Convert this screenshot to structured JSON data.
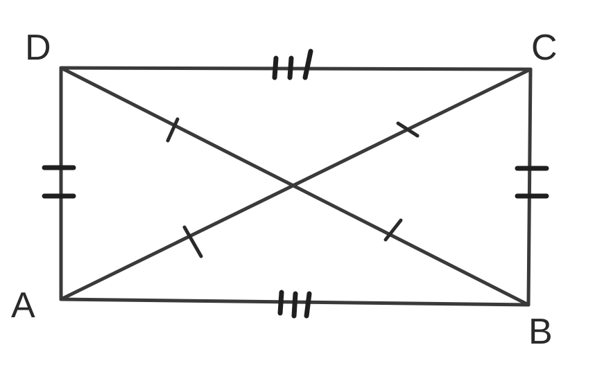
{
  "diagram": {
    "vertices": {
      "A": {
        "label": "A"
      },
      "B": {
        "label": "B"
      },
      "C": {
        "label": "C"
      },
      "D": {
        "label": "D"
      }
    },
    "segments": [
      {
        "from": "A",
        "to": "B",
        "ticks": 3
      },
      {
        "from": "D",
        "to": "C",
        "ticks": 3
      },
      {
        "from": "A",
        "to": "D",
        "ticks": 2
      },
      {
        "from": "B",
        "to": "C",
        "ticks": 2
      },
      {
        "from": "A",
        "to": "C",
        "ticks": 1
      },
      {
        "from": "D",
        "to": "B",
        "ticks": 1
      }
    ],
    "colors": {
      "line": "#3a3a3a",
      "label": "#2a2a2a",
      "background": "#ffffff"
    }
  }
}
